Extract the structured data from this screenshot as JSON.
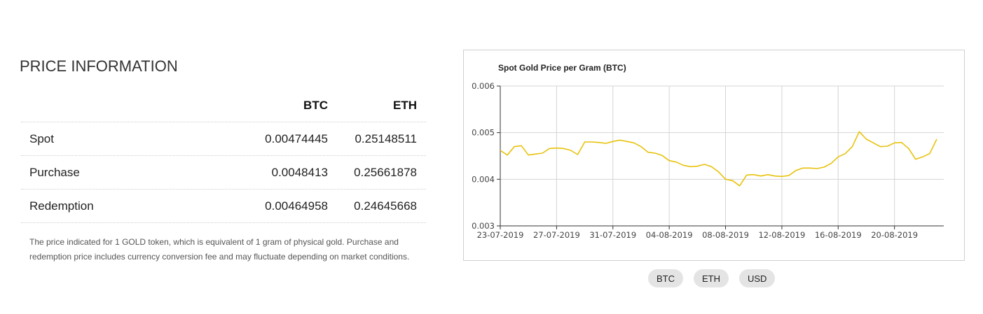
{
  "section": {
    "title": "PRICE INFORMATION"
  },
  "table": {
    "columns": [
      "BTC",
      "ETH"
    ],
    "rows": [
      {
        "label": "Spot",
        "btc": "0.00474445",
        "eth": "0.25148511"
      },
      {
        "label": "Purchase",
        "btc": "0.0048413",
        "eth": "0.25661878"
      },
      {
        "label": "Redemption",
        "btc": "0.00464958",
        "eth": "0.24645668"
      }
    ]
  },
  "note": {
    "line1": "The price indicated for 1 GOLD token, which is equivalent of 1 gram of physical gold. Purchase and",
    "line2": "redemption price includes currency conversion fee and may fluctuate depending on market conditions."
  },
  "currency_buttons": [
    "BTC",
    "ETH",
    "USD"
  ],
  "chart_data": {
    "type": "line",
    "title": "Spot Gold Price per Gram (BTC)",
    "xlabel": "",
    "ylabel": "",
    "ylim": [
      0.003,
      0.006
    ],
    "yticks": [
      "0.006",
      "0.005",
      "0.004",
      "0.003"
    ],
    "xticks": [
      "23-07-2019",
      "27-07-2019",
      "31-07-2019",
      "04-08-2019",
      "08-08-2019",
      "12-08-2019",
      "16-08-2019",
      "20-08-2019"
    ],
    "grid": true,
    "line_color": "#e8c20c",
    "series": [
      {
        "x": [
          "23-07-2019",
          "23-07-2019",
          "24-07-2019",
          "24-07-2019",
          "25-07-2019",
          "25-07-2019",
          "26-07-2019",
          "26-07-2019",
          "27-07-2019",
          "27-07-2019",
          "28-07-2019",
          "28-07-2019",
          "29-07-2019",
          "29-07-2019",
          "30-07-2019",
          "30-07-2019",
          "31-07-2019",
          "31-07-2019",
          "01-08-2019",
          "01-08-2019",
          "02-08-2019",
          "02-08-2019",
          "03-08-2019",
          "03-08-2019",
          "04-08-2019",
          "04-08-2019",
          "05-08-2019",
          "05-08-2019",
          "06-08-2019",
          "06-08-2019",
          "07-08-2019",
          "07-08-2019",
          "08-08-2019",
          "08-08-2019",
          "09-08-2019",
          "09-08-2019",
          "10-08-2019",
          "10-08-2019",
          "11-08-2019",
          "11-08-2019",
          "12-08-2019",
          "12-08-2019",
          "13-08-2019",
          "13-08-2019",
          "14-08-2019",
          "14-08-2019",
          "15-08-2019",
          "15-08-2019",
          "16-08-2019",
          "16-08-2019",
          "17-08-2019",
          "17-08-2019",
          "18-08-2019",
          "18-08-2019",
          "19-08-2019",
          "19-08-2019",
          "20-08-2019",
          "20-08-2019",
          "21-08-2019",
          "21-08-2019",
          "22-08-2019",
          "22-08-2019",
          "23-08-2019"
        ],
        "y": [
          0.00462,
          0.00452,
          0.0047,
          0.00472,
          0.00452,
          0.00454,
          0.00456,
          0.00466,
          0.00467,
          0.00466,
          0.00462,
          0.00453,
          0.0048,
          0.0048,
          0.00479,
          0.00477,
          0.00481,
          0.00484,
          0.00481,
          0.00478,
          0.0047,
          0.00458,
          0.00456,
          0.00451,
          0.0044,
          0.00437,
          0.0043,
          0.00427,
          0.00428,
          0.00432,
          0.00427,
          0.00416,
          0.004,
          0.00397,
          0.00386,
          0.00409,
          0.0041,
          0.00407,
          0.0041,
          0.00407,
          0.00406,
          0.00408,
          0.00419,
          0.00424,
          0.00424,
          0.00423,
          0.00426,
          0.00434,
          0.00448,
          0.00455,
          0.0047,
          0.00502,
          0.00486,
          0.00478,
          0.0047,
          0.00471,
          0.00478,
          0.00479,
          0.00466,
          0.00443,
          0.00448,
          0.00455,
          0.00486
        ]
      }
    ]
  }
}
